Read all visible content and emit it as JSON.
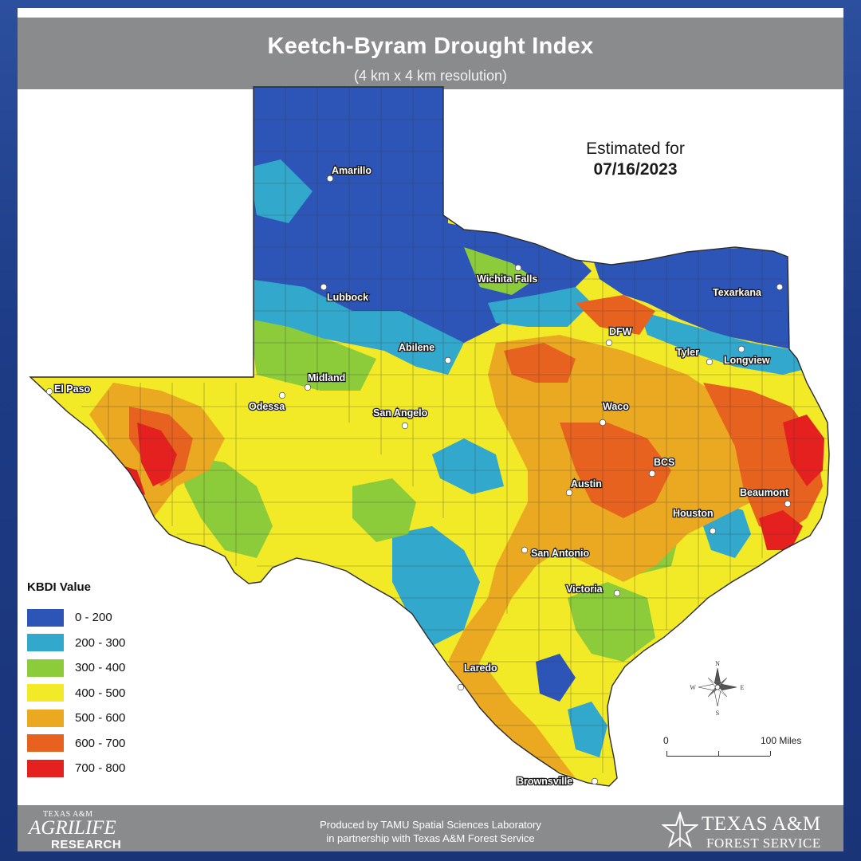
{
  "title": "Keetch-Byram Drought Index",
  "subtitle": "(4 km x 4 km resolution)",
  "estimate": {
    "label": "Estimated for",
    "date": "07/16/2023"
  },
  "legend": {
    "title": "KBDI Value",
    "classes": [
      {
        "range": "0 - 200",
        "color": "#2d55b8"
      },
      {
        "range": "200 - 300",
        "color": "#32a8cc"
      },
      {
        "range": "300 - 400",
        "color": "#8ccb3a"
      },
      {
        "range": "400 - 500",
        "color": "#f2ea27"
      },
      {
        "range": "500 - 600",
        "color": "#eba821"
      },
      {
        "range": "600 - 700",
        "color": "#e8621f"
      },
      {
        "range": "700 - 800",
        "color": "#e4211f"
      }
    ]
  },
  "cities": [
    "Amarillo",
    "Lubbock",
    "Wichita Falls",
    "Texarkana",
    "DFW",
    "Abilene",
    "Tyler",
    "Longview",
    "Midland",
    "Odessa",
    "El Paso",
    "San Angelo",
    "Waco",
    "BCS",
    "Austin",
    "Beaumont",
    "Houston",
    "San Antonio",
    "Victoria",
    "Laredo",
    "Brownsville"
  ],
  "compass": {
    "n": "N",
    "s": "S",
    "e": "E",
    "w": "W"
  },
  "scale_bar": {
    "start": "0",
    "end": "100 Miles"
  },
  "footer": {
    "credit_line1": "Produced by TAMU Spatial Sciences Laboratory",
    "credit_line2": "in partnership with Texas A&M Forest Service",
    "agrilife": {
      "top": "TEXAS A&M",
      "mid": "AGRILIFE",
      "bottom": "RESEARCH"
    },
    "forest_service": {
      "top": "TEXAS A&M",
      "bottom": "FOREST SERVICE"
    }
  }
}
